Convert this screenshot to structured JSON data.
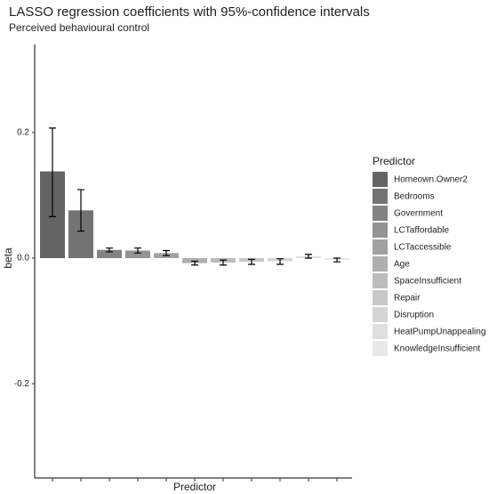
{
  "chart_data": {
    "type": "bar",
    "title": "LASSO regression coefficients with 95%-confidence intervals",
    "subtitle": "Perceived behavioural control",
    "x_label": "Predictor",
    "y_label": "beta",
    "legend_title": "Predictor",
    "categories": [
      "Homeown.Owner2",
      "Bedrooms",
      "Government",
      "LCTaffordable",
      "LCTaccessible",
      "Age",
      "SpaceInsufficient",
      "Repair",
      "Disruption",
      "HeatPumpUnappealing",
      "KnowledgeInsufficient"
    ],
    "values": [
      0.138,
      0.076,
      0.013,
      0.012,
      0.008,
      -0.008,
      -0.007,
      -0.006,
      -0.005,
      0.003,
      -0.003
    ],
    "lower": [
      0.066,
      0.043,
      0.01,
      0.008,
      0.004,
      -0.011,
      -0.011,
      -0.01,
      -0.01,
      0.0,
      -0.006
    ],
    "upper": [
      0.207,
      0.109,
      0.016,
      0.016,
      0.012,
      -0.005,
      -0.003,
      -0.002,
      -0.001,
      0.006,
      0.0
    ],
    "colors": [
      "#636363",
      "#737373",
      "#838383",
      "#939393",
      "#a1a1a1",
      "#afafaf",
      "#bcbcbc",
      "#c8c8c8",
      "#d4d4d4",
      "#dfdfdf",
      "#e8e8e8"
    ],
    "ylim": [
      -0.35,
      0.34
    ],
    "yticks": [
      -0.2,
      {
        "value": 0,
        "label": "0.0"
      },
      0.2
    ],
    "grid": false
  }
}
